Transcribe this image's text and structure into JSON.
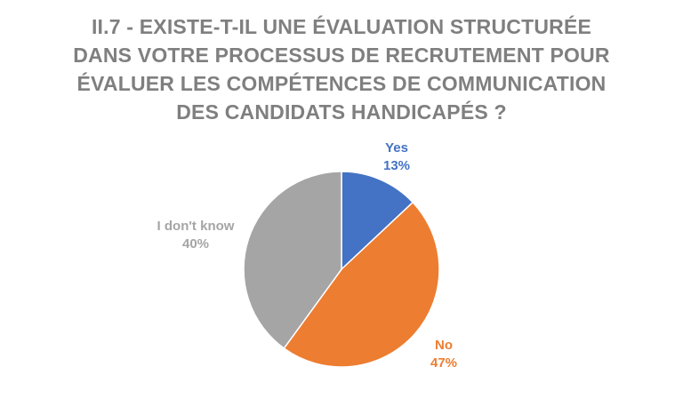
{
  "chart_data": {
    "type": "pie",
    "title": "II.7 - EXISTE-T-IL UNE ÉVALUATION STRUCTURÉE DANS VOTRE PROCESSUS DE RECRUTEMENT POUR ÉVALUER LES COMPÉTENCES DE COMMUNICATION DES CANDIDATS HANDICAPÉS ?",
    "title_lines": [
      "II.7 - EXISTE-T-IL UNE ÉVALUATION STRUCTURÉE",
      "DANS VOTRE PROCESSUS DE RECRUTEMENT POUR",
      "ÉVALUER LES COMPÉTENCES DE COMMUNICATION",
      "DES CANDIDATS HANDICAPÉS ?"
    ],
    "categories": [
      "Yes",
      "No",
      "I don't know"
    ],
    "values": [
      13,
      47,
      40
    ],
    "value_labels": [
      "13%",
      "47%",
      "40%"
    ],
    "colors": [
      "#4472c4",
      "#ed7d31",
      "#a5a5a5"
    ],
    "start_angle": "12 o'clock",
    "direction": "clockwise",
    "legend": "none"
  }
}
